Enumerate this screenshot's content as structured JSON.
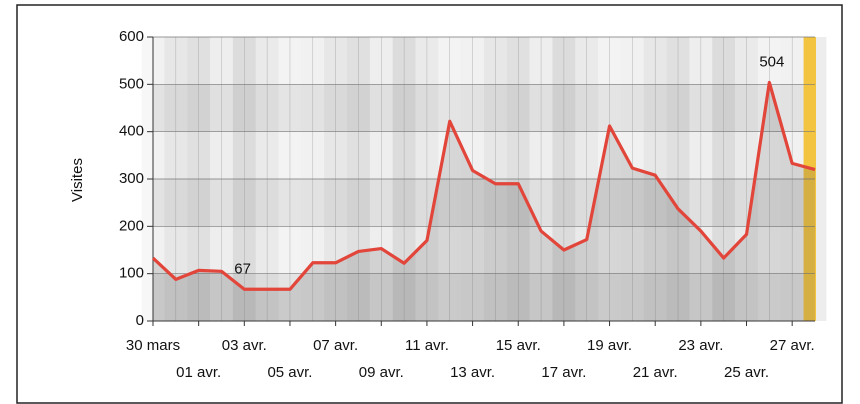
{
  "chart_data": {
    "type": "line",
    "y_label": "Visites",
    "categories": [
      "30 mars",
      null,
      "01 avr.",
      null,
      "03 avr.",
      null,
      "05 avr.",
      null,
      "07 avr.",
      null,
      "09 avr.",
      null,
      "11 avr.",
      null,
      "13 avr.",
      null,
      "15 avr.",
      null,
      "17 avr.",
      null,
      "19 avr.",
      null,
      "21 avr.",
      null,
      "23 avr.",
      null,
      "25 avr.",
      null,
      "27 avr.",
      null
    ],
    "series": [
      {
        "name": "Visites",
        "color": "#e2453a",
        "values": [
          133,
          88,
          107,
          105,
          67,
          67,
          67,
          123,
          123,
          147,
          153,
          122,
          170,
          422,
          318,
          290,
          290,
          190,
          150,
          172,
          412,
          323,
          308,
          237,
          190,
          133,
          183,
          504,
          333,
          320
        ]
      }
    ],
    "ylim": [
      0,
      600
    ],
    "yticks": [
      0,
      100,
      200,
      300,
      400,
      500,
      600
    ],
    "grid": true,
    "label_extremes": true,
    "highlight_last": true
  }
}
